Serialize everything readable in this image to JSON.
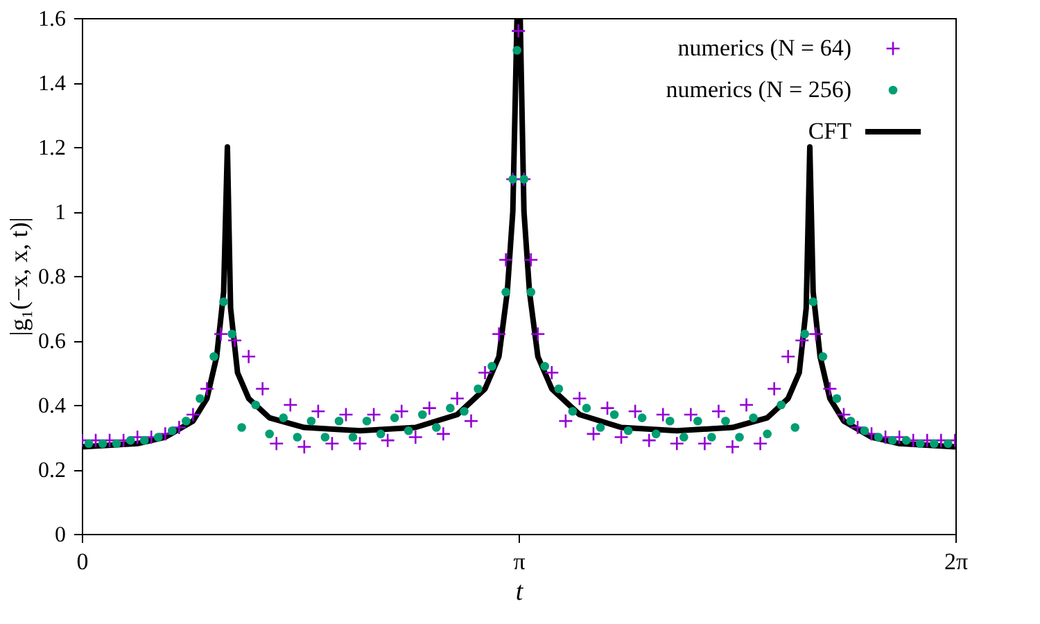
{
  "chart_data": {
    "type": "scatter",
    "xlabel": "t",
    "ylabel": "|g₁(−x, x, t)|",
    "xlim": [
      0,
      6.28319
    ],
    "ylim": [
      0,
      1.6
    ],
    "xticks": [
      {
        "value": 0,
        "label": "0"
      },
      {
        "value": 3.14159,
        "label": "π"
      },
      {
        "value": 6.28319,
        "label": "2π"
      }
    ],
    "yticks": [
      0,
      0.2,
      0.4,
      0.6,
      0.8,
      1,
      1.2,
      1.4,
      1.6
    ],
    "grid": false,
    "legend": "top right",
    "series": [
      {
        "name": "numerics (N = 64)",
        "marker": "cross",
        "color": "#9400d3",
        "x": [
          0,
          0.1,
          0.2,
          0.3,
          0.4,
          0.5,
          0.6,
          0.7,
          0.8,
          0.9,
          1.0,
          1.1,
          1.2,
          1.3,
          1.4,
          1.5,
          1.6,
          1.7,
          1.8,
          1.9,
          2.0,
          2.1,
          2.2,
          2.3,
          2.4,
          2.5,
          2.6,
          2.7,
          2.8,
          2.9,
          3.0,
          3.05,
          3.1,
          3.14,
          3.18,
          3.23,
          3.28,
          3.38,
          3.48,
          3.58,
          3.68,
          3.78,
          3.88,
          3.98,
          4.08,
          4.18,
          4.28,
          4.38,
          4.48,
          4.58,
          4.68,
          4.78,
          4.88,
          4.98,
          5.08,
          5.18,
          5.28,
          5.38,
          5.48,
          5.58,
          5.68,
          5.78,
          5.88,
          5.98,
          6.08,
          6.18,
          6.28
        ],
        "values": [
          0.29,
          0.29,
          0.29,
          0.29,
          0.3,
          0.3,
          0.31,
          0.33,
          0.37,
          0.45,
          0.62,
          0.6,
          0.55,
          0.45,
          0.28,
          0.4,
          0.27,
          0.38,
          0.28,
          0.37,
          0.28,
          0.37,
          0.29,
          0.38,
          0.3,
          0.39,
          0.31,
          0.42,
          0.35,
          0.5,
          0.62,
          0.85,
          1.1,
          1.56,
          1.1,
          0.85,
          0.62,
          0.5,
          0.35,
          0.42,
          0.31,
          0.39,
          0.3,
          0.38,
          0.29,
          0.37,
          0.28,
          0.37,
          0.28,
          0.38,
          0.27,
          0.4,
          0.28,
          0.45,
          0.55,
          0.6,
          0.62,
          0.45,
          0.37,
          0.33,
          0.31,
          0.3,
          0.3,
          0.29,
          0.29,
          0.29,
          0.29
        ]
      },
      {
        "name": "numerics (N = 256)",
        "marker": "circle",
        "color": "#009e73",
        "x": [
          0.05,
          0.15,
          0.25,
          0.35,
          0.45,
          0.55,
          0.65,
          0.75,
          0.85,
          0.95,
          1.02,
          1.08,
          1.15,
          1.25,
          1.35,
          1.45,
          1.55,
          1.65,
          1.75,
          1.85,
          1.95,
          2.05,
          2.15,
          2.25,
          2.35,
          2.45,
          2.55,
          2.65,
          2.75,
          2.85,
          2.95,
          3.05,
          3.1,
          3.13,
          3.18,
          3.23,
          3.33,
          3.43,
          3.53,
          3.63,
          3.73,
          3.83,
          3.93,
          4.03,
          4.13,
          4.23,
          4.33,
          4.43,
          4.53,
          4.63,
          4.73,
          4.83,
          4.93,
          5.03,
          5.13,
          5.2,
          5.26,
          5.33,
          5.43,
          5.53,
          5.63,
          5.73,
          5.83,
          5.93,
          6.03,
          6.13,
          6.23
        ],
        "values": [
          0.28,
          0.28,
          0.28,
          0.29,
          0.29,
          0.3,
          0.32,
          0.35,
          0.42,
          0.55,
          0.72,
          0.62,
          0.33,
          0.4,
          0.31,
          0.36,
          0.3,
          0.35,
          0.3,
          0.35,
          0.3,
          0.35,
          0.31,
          0.36,
          0.32,
          0.37,
          0.33,
          0.39,
          0.38,
          0.45,
          0.52,
          0.75,
          1.1,
          1.5,
          1.1,
          0.75,
          0.52,
          0.45,
          0.38,
          0.39,
          0.33,
          0.37,
          0.32,
          0.36,
          0.31,
          0.35,
          0.3,
          0.35,
          0.3,
          0.35,
          0.3,
          0.36,
          0.31,
          0.4,
          0.33,
          0.62,
          0.72,
          0.55,
          0.42,
          0.35,
          0.32,
          0.3,
          0.29,
          0.29,
          0.28,
          0.28,
          0.28
        ]
      },
      {
        "name": "CFT",
        "type": "line",
        "line_style": "solid",
        "marker": "none",
        "color": "#000000",
        "x": [
          0,
          0.4,
          0.6,
          0.8,
          0.9,
          0.97,
          1.02,
          1.047,
          1.07,
          1.12,
          1.2,
          1.35,
          1.6,
          2.0,
          2.4,
          2.7,
          2.9,
          3.0,
          3.06,
          3.1,
          3.13,
          3.153,
          3.18,
          3.22,
          3.28,
          3.38,
          3.58,
          3.88,
          4.28,
          4.68,
          4.93,
          5.08,
          5.16,
          5.21,
          5.236,
          5.26,
          5.31,
          5.38,
          5.48,
          5.68,
          5.88,
          6.28319
        ],
        "values": [
          0.27,
          0.28,
          0.3,
          0.35,
          0.42,
          0.55,
          0.75,
          1.2,
          0.7,
          0.5,
          0.42,
          0.36,
          0.33,
          0.32,
          0.33,
          0.37,
          0.45,
          0.55,
          0.75,
          1.0,
          1.6,
          1.6,
          1.0,
          0.75,
          0.55,
          0.45,
          0.37,
          0.33,
          0.32,
          0.33,
          0.36,
          0.42,
          0.5,
          0.7,
          1.2,
          0.75,
          0.55,
          0.42,
          0.35,
          0.3,
          0.28,
          0.27
        ]
      }
    ]
  }
}
